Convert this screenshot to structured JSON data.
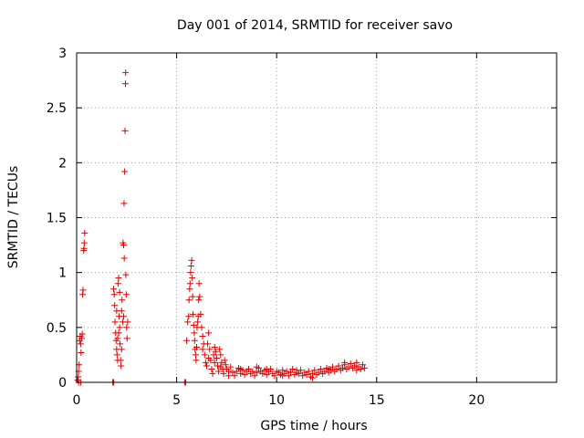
{
  "chart_data": {
    "type": "scatter",
    "title": "Day 001 of 2014, SRMTID for receiver savo",
    "xlabel": "GPS time / hours",
    "ylabel": "SRMTID / TECUs",
    "xlim": [
      0,
      24
    ],
    "ylim": [
      0,
      3
    ],
    "xticks": [
      0,
      5,
      10,
      15,
      20
    ],
    "xtick_labels": [
      "0",
      "5",
      "10",
      "15",
      "20"
    ],
    "yticks": [
      0,
      0.5,
      1,
      1.5,
      2,
      2.5,
      3
    ],
    "ytick_labels": [
      "0",
      "0.5",
      "1",
      "1.5",
      "2",
      "2.5",
      "3"
    ],
    "grid": true,
    "marker": "plus",
    "color": "#e00000",
    "series": [
      {
        "name": "SRMTID",
        "points": [
          [
            0.05,
            0.02
          ],
          [
            0.08,
            0.05
          ],
          [
            0.1,
            0.1
          ],
          [
            0.12,
            0.16
          ],
          [
            0.15,
            0.38
          ],
          [
            0.18,
            0.42
          ],
          [
            0.2,
            0.35
          ],
          [
            0.22,
            0.27
          ],
          [
            0.25,
            0.4
          ],
          [
            0.28,
            0.44
          ],
          [
            0.3,
            0.8
          ],
          [
            0.32,
            0.84
          ],
          [
            0.35,
            1.2
          ],
          [
            0.37,
            1.22
          ],
          [
            0.38,
            1.27
          ],
          [
            0.4,
            1.36
          ],
          [
            0.1,
            0.0
          ],
          [
            0.2,
            0.0
          ],
          [
            1.8,
            0.0
          ],
          [
            1.85,
            0.0
          ],
          [
            1.85,
            0.85
          ],
          [
            1.88,
            0.8
          ],
          [
            1.9,
            0.7
          ],
          [
            1.92,
            0.55
          ],
          [
            1.95,
            0.45
          ],
          [
            1.97,
            0.38
          ],
          [
            2.0,
            0.3
          ],
          [
            2.02,
            0.25
          ],
          [
            2.05,
            0.2
          ],
          [
            2.07,
            0.9
          ],
          [
            2.1,
            0.95
          ],
          [
            2.12,
            0.6
          ],
          [
            2.15,
            0.5
          ],
          [
            2.17,
            0.35
          ],
          [
            2.2,
            0.2
          ],
          [
            2.22,
            0.15
          ],
          [
            2.25,
            0.65
          ],
          [
            2.27,
            0.75
          ],
          [
            2.3,
            0.55
          ],
          [
            2.32,
            1.27
          ],
          [
            2.35,
            1.25
          ],
          [
            2.37,
            1.63
          ],
          [
            2.38,
            1.13
          ],
          [
            2.4,
            1.92
          ],
          [
            2.42,
            2.29
          ],
          [
            2.44,
            2.72
          ],
          [
            2.45,
            2.82
          ],
          [
            2.46,
            0.98
          ],
          [
            2.48,
            0.8
          ],
          [
            2.5,
            0.5
          ],
          [
            2.52,
            0.4
          ],
          [
            2.55,
            0.55
          ],
          [
            2.0,
            0.65
          ],
          [
            2.1,
            0.45
          ],
          [
            2.15,
            0.82
          ],
          [
            2.25,
            0.3
          ],
          [
            2.35,
            0.6
          ],
          [
            2.05,
            0.4
          ],
          [
            5.4,
            0.0
          ],
          [
            5.45,
            0.0
          ],
          [
            5.5,
            0.38
          ],
          [
            5.55,
            0.55
          ],
          [
            5.6,
            0.6
          ],
          [
            5.62,
            0.75
          ],
          [
            5.65,
            0.85
          ],
          [
            5.67,
            0.9
          ],
          [
            5.7,
            1.0
          ],
          [
            5.72,
            1.06
          ],
          [
            5.75,
            1.11
          ],
          [
            5.78,
            0.95
          ],
          [
            5.8,
            0.78
          ],
          [
            5.82,
            0.62
          ],
          [
            5.85,
            0.52
          ],
          [
            5.88,
            0.45
          ],
          [
            5.9,
            0.38
          ],
          [
            5.92,
            0.3
          ],
          [
            5.95,
            0.25
          ],
          [
            5.97,
            0.2
          ],
          [
            6.0,
            0.32
          ],
          [
            6.02,
            0.5
          ],
          [
            6.05,
            0.55
          ],
          [
            6.08,
            0.6
          ],
          [
            6.1,
            0.75
          ],
          [
            6.12,
            0.9
          ],
          [
            6.15,
            0.78
          ],
          [
            6.2,
            0.62
          ],
          [
            6.25,
            0.5
          ],
          [
            6.3,
            0.42
          ],
          [
            6.35,
            0.35
          ],
          [
            6.4,
            0.25
          ],
          [
            6.45,
            0.18
          ],
          [
            6.5,
            0.15
          ],
          [
            6.55,
            0.35
          ],
          [
            6.6,
            0.45
          ],
          [
            6.65,
            0.3
          ],
          [
            6.7,
            0.2
          ],
          [
            6.75,
            0.12
          ],
          [
            6.8,
            0.08
          ],
          [
            6.85,
            0.25
          ],
          [
            6.9,
            0.32
          ],
          [
            6.95,
            0.28
          ],
          [
            7.0,
            0.22
          ],
          [
            7.05,
            0.15
          ],
          [
            7.1,
            0.1
          ],
          [
            7.15,
            0.3
          ],
          [
            7.2,
            0.25
          ],
          [
            7.25,
            0.18
          ],
          [
            7.3,
            0.12
          ],
          [
            7.35,
            0.08
          ],
          [
            7.4,
            0.2
          ],
          [
            7.45,
            0.16
          ],
          [
            7.5,
            0.12
          ],
          [
            7.6,
            0.1
          ],
          [
            7.7,
            0.14
          ],
          [
            7.8,
            0.09
          ],
          [
            7.9,
            0.06
          ],
          [
            8.0,
            0.1
          ],
          [
            8.1,
            0.13
          ],
          [
            8.2,
            0.08
          ],
          [
            8.3,
            0.11
          ],
          [
            8.4,
            0.07
          ],
          [
            8.5,
            0.1
          ],
          [
            8.6,
            0.12
          ],
          [
            8.7,
            0.08
          ],
          [
            8.8,
            0.1
          ],
          [
            8.9,
            0.06
          ],
          [
            9.0,
            0.09
          ],
          [
            9.1,
            0.13
          ],
          [
            9.2,
            0.1
          ],
          [
            9.3,
            0.08
          ],
          [
            9.4,
            0.11
          ],
          [
            9.5,
            0.07
          ],
          [
            9.6,
            0.1
          ],
          [
            9.7,
            0.12
          ],
          [
            9.8,
            0.08
          ],
          [
            9.9,
            0.06
          ],
          [
            10.0,
            0.1
          ],
          [
            10.1,
            0.09
          ],
          [
            10.2,
            0.07
          ],
          [
            10.3,
            0.11
          ],
          [
            10.4,
            0.08
          ],
          [
            10.5,
            0.1
          ],
          [
            10.6,
            0.06
          ],
          [
            10.7,
            0.09
          ],
          [
            10.8,
            0.12
          ],
          [
            10.9,
            0.07
          ],
          [
            11.0,
            0.09
          ],
          [
            11.1,
            0.08
          ],
          [
            11.2,
            0.11
          ],
          [
            11.3,
            0.06
          ],
          [
            11.4,
            0.09
          ],
          [
            11.5,
            0.07
          ],
          [
            11.6,
            0.1
          ],
          [
            11.7,
            0.05
          ],
          [
            11.8,
            0.08
          ],
          [
            11.9,
            0.11
          ],
          [
            12.0,
            0.07
          ],
          [
            12.1,
            0.09
          ],
          [
            12.2,
            0.12
          ],
          [
            12.3,
            0.08
          ],
          [
            12.4,
            0.1
          ],
          [
            12.5,
            0.13
          ],
          [
            12.6,
            0.09
          ],
          [
            12.7,
            0.11
          ],
          [
            12.8,
            0.14
          ],
          [
            12.9,
            0.1
          ],
          [
            13.0,
            0.12
          ],
          [
            13.1,
            0.15
          ],
          [
            13.2,
            0.11
          ],
          [
            13.3,
            0.13
          ],
          [
            13.4,
            0.16
          ],
          [
            13.5,
            0.12
          ],
          [
            13.6,
            0.14
          ],
          [
            13.7,
            0.17
          ],
          [
            13.8,
            0.13
          ],
          [
            13.9,
            0.15
          ],
          [
            14.0,
            0.18
          ],
          [
            14.1,
            0.14
          ],
          [
            14.2,
            0.12
          ],
          [
            14.3,
            0.16
          ],
          [
            14.4,
            0.13
          ],
          [
            6.3,
            0.3
          ],
          [
            6.6,
            0.22
          ],
          [
            6.9,
            0.18
          ],
          [
            7.2,
            0.14
          ],
          [
            7.6,
            0.06
          ],
          [
            8.2,
            0.12
          ],
          [
            9.0,
            0.14
          ],
          [
            9.5,
            0.12
          ],
          [
            10.3,
            0.06
          ],
          [
            11.0,
            0.11
          ],
          [
            11.8,
            0.04
          ],
          [
            12.6,
            0.12
          ],
          [
            13.4,
            0.18
          ],
          [
            14.0,
            0.11
          ]
        ]
      }
    ]
  }
}
